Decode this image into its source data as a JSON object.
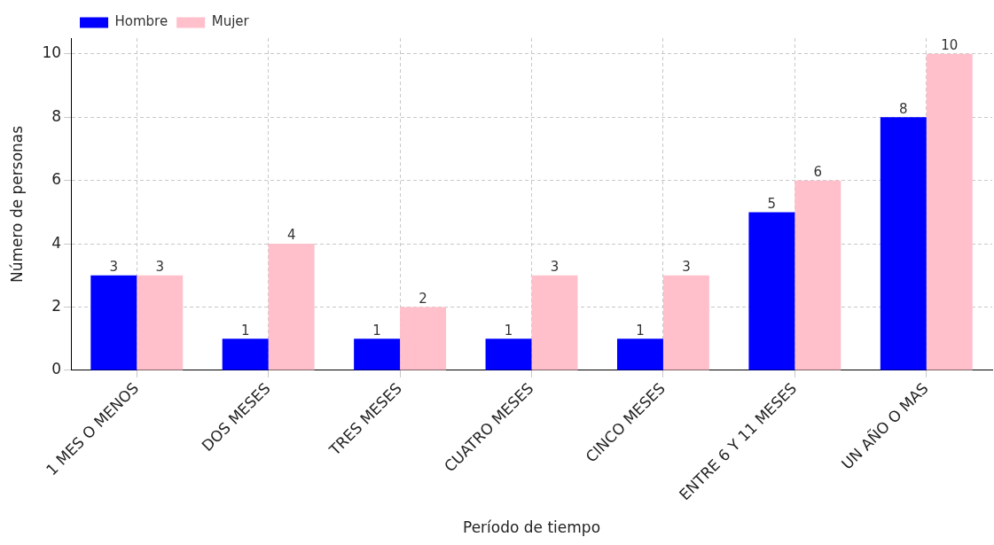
{
  "chart_data": {
    "type": "bar",
    "xlabel": "Período de tiempo",
    "ylabel": "Número de personas",
    "categories": [
      "1 MES O MENOS",
      "DOS MESES",
      "TRES MESES",
      "CUATRO MESES",
      "CINCO MESES",
      "ENTRE 6 Y 11 MESES",
      "UN AÑO O MAS"
    ],
    "series": [
      {
        "name": "Hombre",
        "color": "#0000ff",
        "values": [
          3,
          1,
          1,
          1,
          1,
          5,
          8
        ]
      },
      {
        "name": "Mujer",
        "color": "#ffc0cb",
        "values": [
          3,
          4,
          2,
          3,
          3,
          6,
          10
        ]
      }
    ],
    "ylim": [
      0,
      10.5
    ],
    "yticks": [
      0,
      2,
      4,
      6,
      8,
      10
    ],
    "grid": true,
    "legend": "top left",
    "data_labels": true
  }
}
